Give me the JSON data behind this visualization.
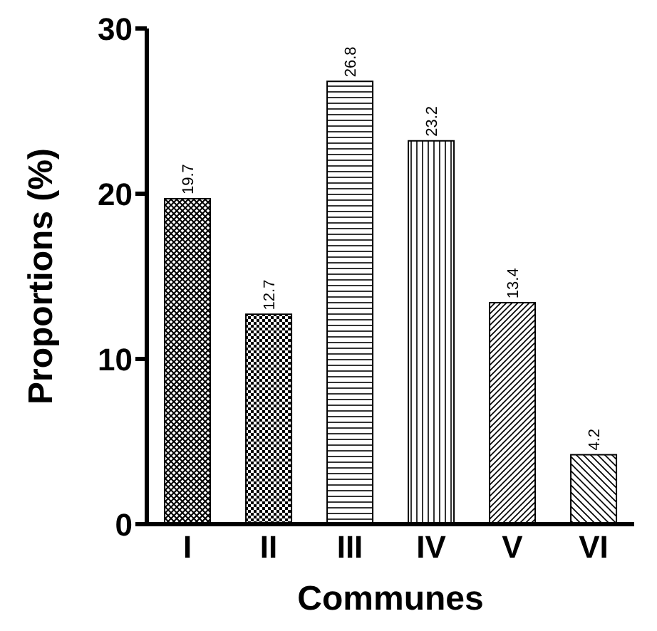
{
  "chart_data": {
    "type": "bar",
    "xlabel": "Communes",
    "ylabel": "Proportions (%)",
    "categories": [
      "I",
      "II",
      "III",
      "IV",
      "V",
      "VI"
    ],
    "values": [
      19.7,
      12.7,
      26.8,
      23.2,
      13.4,
      4.2
    ],
    "colors": [
      "#000000",
      "#000000",
      "#000000",
      "#000000",
      "#000000",
      "#000000"
    ],
    "ylim": [
      0,
      30
    ],
    "yticks": [
      0,
      10,
      20,
      30
    ],
    "data_labels": true,
    "grid": false,
    "legend": false
  }
}
